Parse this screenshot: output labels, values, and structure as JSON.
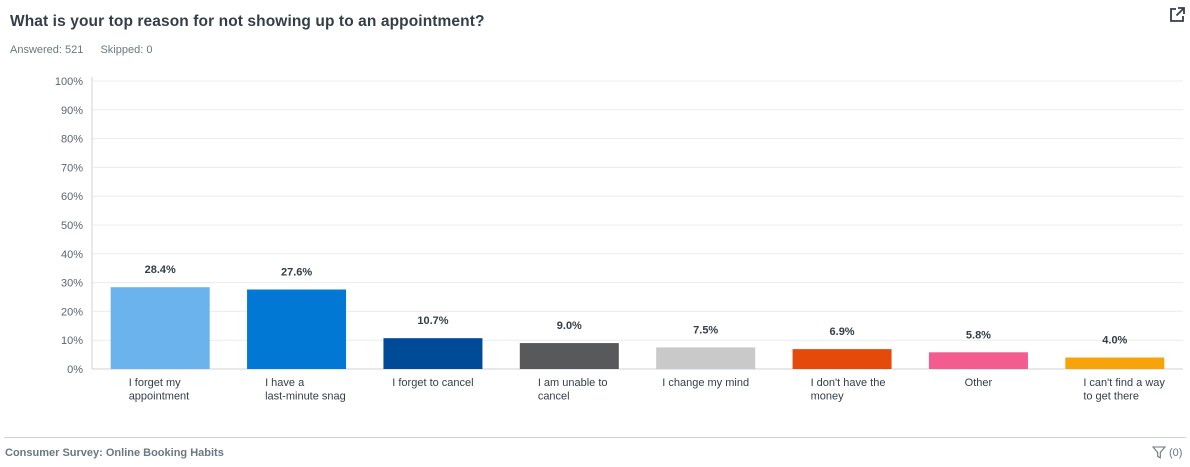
{
  "question": "What is your top reason for not showing up to an appointment?",
  "answered": "Answered: 521",
  "skipped": "Skipped: 0",
  "footer": {
    "survey_title": "Consumer Survey: Online Booking Habits",
    "filter_count": "(0)"
  },
  "icons": {
    "export": "external-link-icon",
    "filter": "filter-funnel-icon"
  },
  "chart_data": {
    "type": "bar",
    "title": "What is your top reason for not showing up to an appointment?",
    "xlabel": "",
    "ylabel": "",
    "ylim": [
      0,
      100
    ],
    "yticks": [
      "0%",
      "10%",
      "20%",
      "30%",
      "40%",
      "50%",
      "60%",
      "70%",
      "80%",
      "90%",
      "100%"
    ],
    "grid": true,
    "categories": [
      [
        "I forget my",
        "appointment"
      ],
      [
        "I have a",
        "last-minute snag"
      ],
      [
        "I forget to cancel"
      ],
      [
        "I am unable to",
        "cancel"
      ],
      [
        "I change my mind"
      ],
      [
        "I don't have the",
        "money"
      ],
      [
        "Other"
      ],
      [
        "I can't find a way",
        "to get there"
      ]
    ],
    "values": [
      28.4,
      27.6,
      10.7,
      9.0,
      7.5,
      6.9,
      5.8,
      4.0
    ],
    "value_labels": [
      "28.4%",
      "27.6%",
      "10.7%",
      "9.0%",
      "7.5%",
      "6.9%",
      "5.8%",
      "4.0%"
    ],
    "colors": [
      "#6bb3ec",
      "#0078d4",
      "#004b97",
      "#58595b",
      "#c9c9c9",
      "#e64a0a",
      "#f45b8e",
      "#f7a40b"
    ]
  }
}
